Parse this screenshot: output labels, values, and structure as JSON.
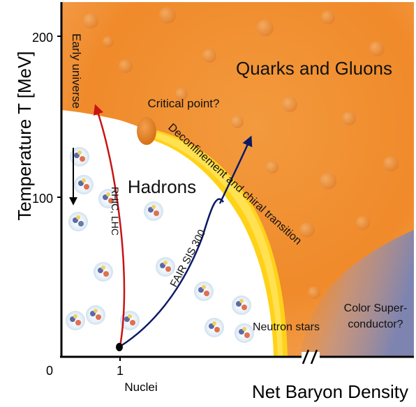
{
  "axes": {
    "y_label": "Temperature T [MeV]",
    "x_label": "Net Baryon Density",
    "y_ticks": [
      "200",
      "100",
      "0"
    ],
    "x_tick_one": "1",
    "x_tick_one_sub": "Nuclei"
  },
  "regions": {
    "qgp": "Quarks and Gluons",
    "hadrons": "Hadrons",
    "color_sc_line1": "Color Super-",
    "color_sc_line2": "conductor?",
    "neutron_stars": "Neutron stars"
  },
  "annotations": {
    "critical_point": "Critical point?",
    "transition": "Deconfinement and chiral transition",
    "early_universe": "Early universe",
    "rhic": "RHIC, LHC",
    "fair": "FAIR SIS 300"
  },
  "colors": {
    "qgp_orange": "#f08a2a",
    "transition_yellow": "#ffd21a",
    "critical_point": "#e07818",
    "color_sc_blue": "#8a8fb5",
    "rhic_arrow": "#c81414",
    "fair_arrow": "#0c1a66",
    "early_universe_arrow": "#000000"
  },
  "icons": {
    "hadron": "hadron-cluster-icon",
    "nuclei_point": "nuclei-dot-icon"
  }
}
